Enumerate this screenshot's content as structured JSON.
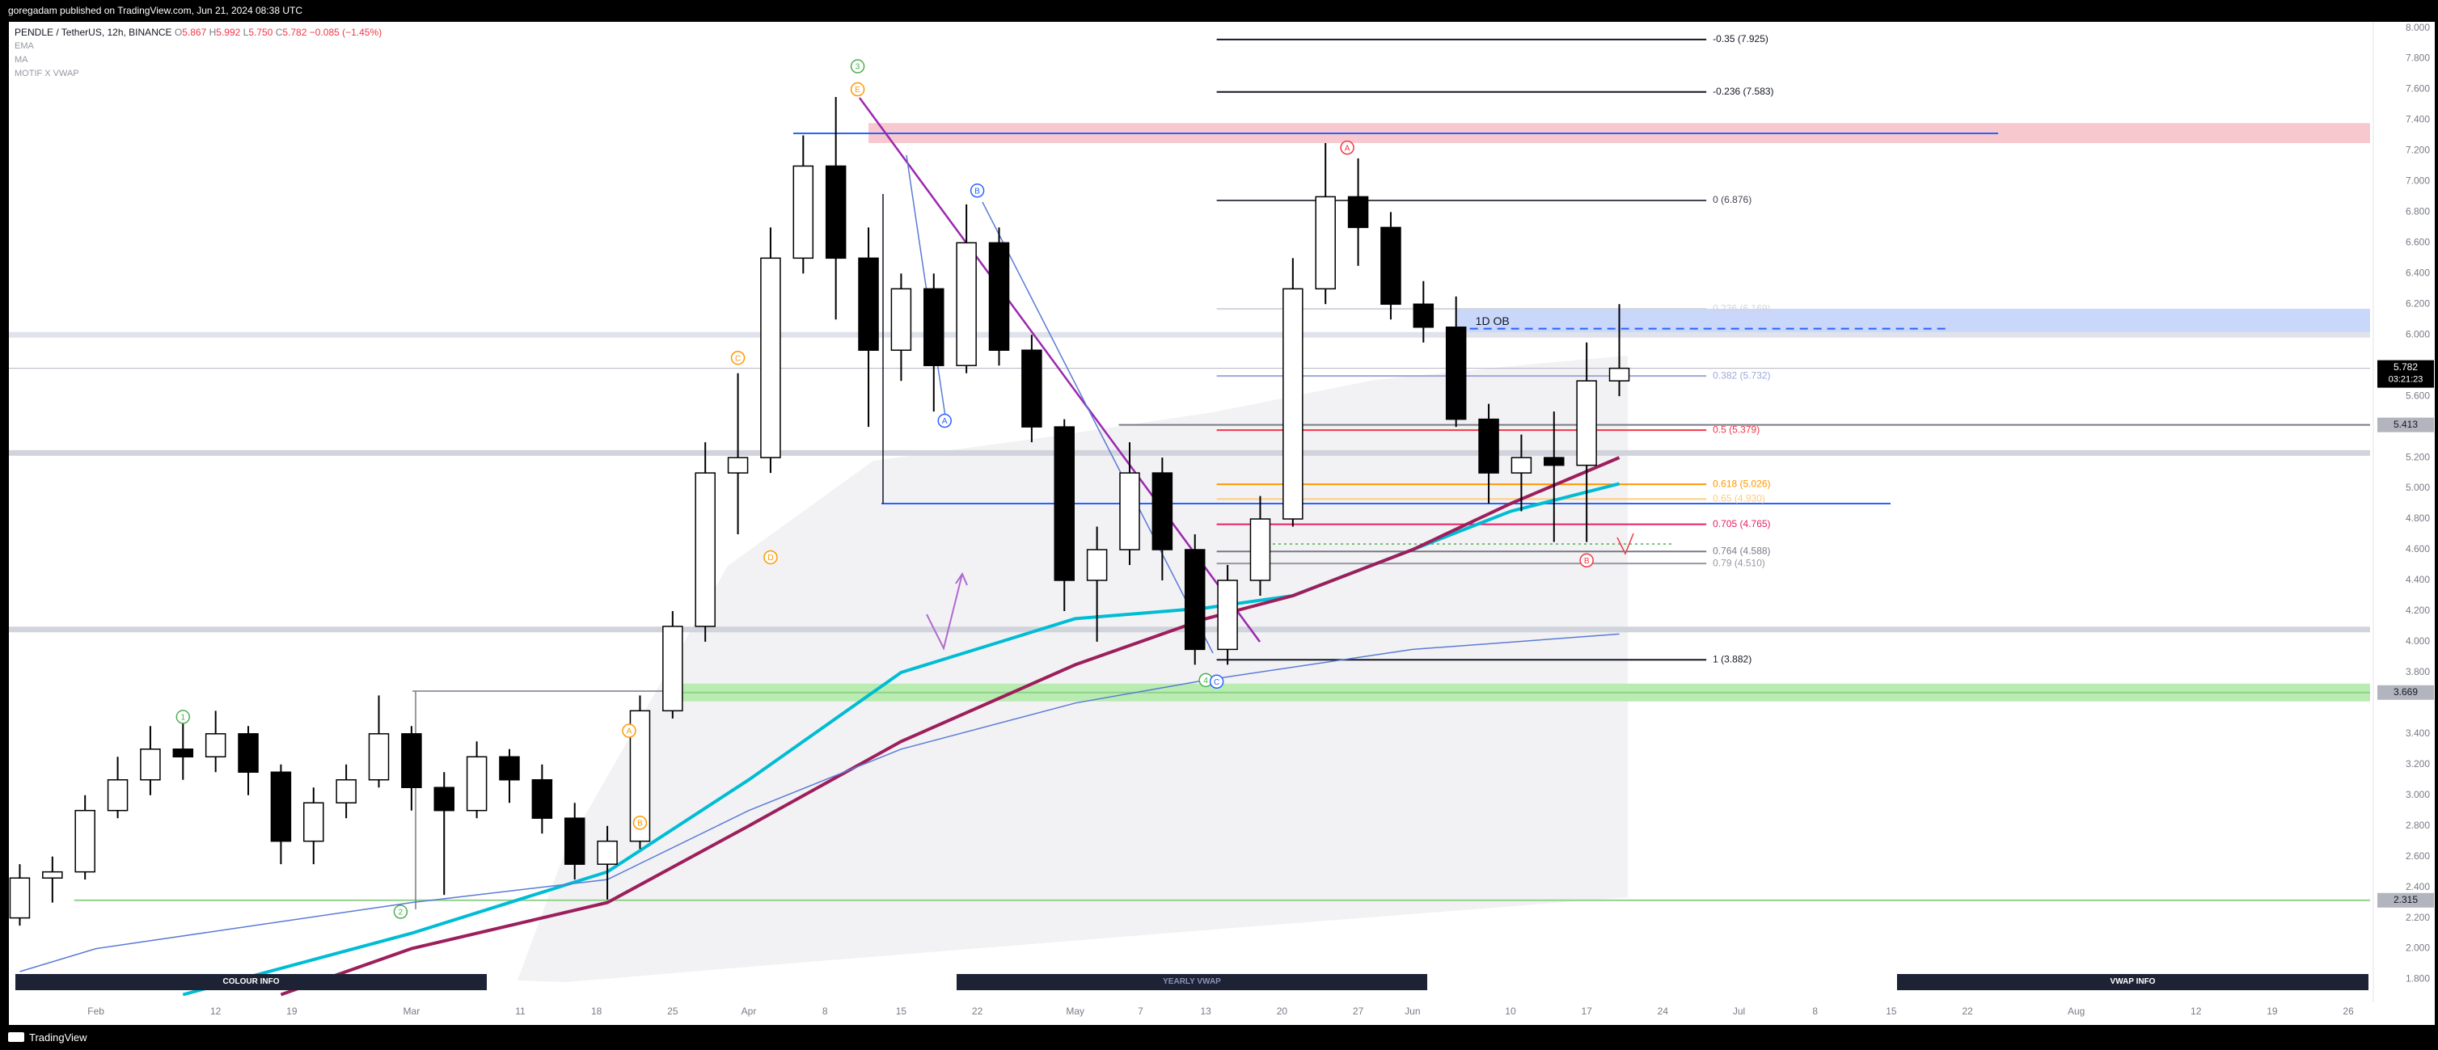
{
  "header": {
    "title": "goregadam published on TradingView.com, Jun 21, 2024 08:38 UTC"
  },
  "footer": {
    "brand": "TradingView"
  },
  "buttons": [
    "COLOUR INFO",
    "YEARLY VWAP",
    "VWAP INFO"
  ],
  "chart_data": {
    "type": "candlestick",
    "legend": {
      "symbol": "PENDLE / TetherUS, 12h, BINANCE",
      "ohlc": [
        {
          "key": "O",
          "value": "5.867"
        },
        {
          "key": "H",
          "value": "5.992"
        },
        {
          "key": "L",
          "value": "5.750"
        },
        {
          "key": "C",
          "value": "5.782"
        }
      ],
      "change": "−0.085 (−1.45%)"
    },
    "x": [
      "2024-01-25",
      "2024-01-28",
      "2024-01-31",
      "2024-02-03",
      "2024-02-06",
      "2024-02-09",
      "2024-02-12",
      "2024-02-15",
      "2024-02-18",
      "2024-02-21",
      "2024-02-24",
      "2024-02-27",
      "2024-03-01",
      "2024-03-04",
      "2024-03-07",
      "2024-03-10",
      "2024-03-13",
      "2024-03-16",
      "2024-03-19",
      "2024-03-22",
      "2024-03-25",
      "2024-03-28",
      "2024-03-31",
      "2024-04-03",
      "2024-04-06",
      "2024-04-09",
      "2024-04-12",
      "2024-04-15",
      "2024-04-18",
      "2024-04-21",
      "2024-04-24",
      "2024-04-27",
      "2024-04-30",
      "2024-05-03",
      "2024-05-06",
      "2024-05-09",
      "2024-05-12",
      "2024-05-15",
      "2024-05-18",
      "2024-05-21",
      "2024-05-24",
      "2024-05-27",
      "2024-05-30",
      "2024-06-02",
      "2024-06-05",
      "2024-06-08",
      "2024-06-11",
      "2024-06-14",
      "2024-06-17",
      "2024-06-20"
    ],
    "open": [
      2.2,
      2.46,
      2.5,
      2.9,
      3.1,
      3.3,
      3.25,
      3.4,
      3.15,
      2.7,
      2.95,
      3.1,
      3.4,
      3.05,
      2.9,
      3.25,
      3.1,
      2.85,
      2.55,
      2.7,
      3.55,
      4.1,
      5.1,
      5.2,
      6.5,
      7.1,
      6.5,
      5.9,
      6.3,
      5.8,
      6.6,
      5.9,
      5.4,
      4.4,
      4.6,
      5.1,
      4.6,
      3.95,
      4.4,
      4.8,
      6.3,
      6.9,
      6.7,
      6.2,
      6.05,
      5.45,
      5.1,
      5.2,
      5.15,
      5.7
    ],
    "high": [
      2.55,
      2.6,
      3.0,
      3.25,
      3.45,
      3.5,
      3.55,
      3.45,
      3.2,
      3.05,
      3.2,
      3.65,
      3.45,
      3.15,
      3.35,
      3.3,
      3.2,
      2.95,
      2.8,
      3.65,
      4.2,
      5.3,
      5.75,
      6.7,
      7.3,
      7.55,
      6.7,
      6.4,
      6.4,
      6.85,
      6.7,
      6.0,
      5.45,
      4.75,
      5.3,
      5.2,
      4.7,
      4.5,
      4.95,
      6.5,
      7.25,
      7.15,
      6.8,
      6.35,
      6.25,
      5.55,
      5.35,
      5.5,
      5.95,
      6.2
    ],
    "low": [
      2.15,
      2.3,
      2.45,
      2.85,
      3.0,
      3.1,
      3.15,
      3.0,
      2.55,
      2.55,
      2.85,
      3.05,
      2.9,
      2.35,
      2.85,
      2.95,
      2.75,
      2.45,
      2.32,
      2.65,
      3.5,
      4.0,
      4.7,
      5.1,
      6.4,
      6.1,
      5.4,
      5.7,
      5.5,
      5.75,
      5.8,
      5.3,
      4.2,
      4.0,
      4.5,
      4.4,
      3.85,
      3.85,
      4.3,
      4.75,
      6.2,
      6.45,
      6.1,
      5.95,
      5.4,
      4.9,
      4.85,
      4.65,
      4.65,
      5.6
    ],
    "close": [
      2.46,
      2.5,
      2.9,
      3.1,
      3.3,
      3.25,
      3.4,
      3.15,
      2.7,
      2.95,
      3.1,
      3.4,
      3.05,
      2.9,
      3.25,
      3.1,
      2.85,
      2.55,
      2.7,
      3.55,
      4.1,
      5.1,
      5.2,
      6.5,
      7.1,
      6.5,
      5.9,
      6.3,
      5.8,
      6.6,
      5.9,
      5.4,
      4.4,
      4.6,
      5.1,
      4.6,
      3.95,
      4.4,
      4.8,
      6.3,
      6.9,
      6.7,
      6.2,
      6.05,
      5.45,
      5.1,
      5.2,
      5.15,
      5.7,
      5.782
    ],
    "up_color": "#ffffff",
    "down_color": "#000000",
    "series": [
      {
        "name": "EMA",
        "color": "#00bcd4",
        "width": 4,
        "x": [
          "2024-02-09",
          "2024-03-01",
          "2024-03-19",
          "2024-04-01",
          "2024-04-15",
          "2024-05-01",
          "2024-05-13",
          "2024-05-21",
          "2024-06-01",
          "2024-06-10",
          "2024-06-20"
        ],
        "values": [
          1.7,
          2.1,
          2.5,
          3.1,
          3.8,
          4.15,
          4.22,
          4.3,
          4.6,
          4.85,
          5.03
        ]
      },
      {
        "name": "MA",
        "color": "#9c1f5c",
        "width": 4,
        "x": [
          "2024-02-18",
          "2024-03-01",
          "2024-03-19",
          "2024-04-01",
          "2024-04-15",
          "2024-05-01",
          "2024-05-13",
          "2024-05-21",
          "2024-06-01",
          "2024-06-10",
          "2024-06-20"
        ],
        "values": [
          1.7,
          2.0,
          2.3,
          2.8,
          3.35,
          3.85,
          4.15,
          4.3,
          4.6,
          4.9,
          5.2
        ]
      },
      {
        "name": "MOTIF X VWAP",
        "color": "#5b7bd5",
        "width": 1.5,
        "x": [
          "2024-01-25",
          "2024-02-01",
          "2024-03-01",
          "2024-03-19",
          "2024-04-01",
          "2024-04-15",
          "2024-05-01",
          "2024-05-13",
          "2024-06-01",
          "2024-06-20"
        ],
        "values": [
          1.85,
          2.0,
          2.3,
          2.45,
          2.9,
          3.3,
          3.6,
          3.75,
          3.95,
          4.05
        ]
      }
    ],
    "zones": [
      {
        "from": 7.25,
        "to": 7.38,
        "start": "2024-04-12",
        "color": "#f8c8cf"
      },
      {
        "label": "1D OB",
        "from": 6.0,
        "to": 6.17,
        "start": "2024-06-05",
        "color": "#c9d7fb"
      }
    ],
    "bands": [
      {
        "value": 6.0,
        "color": "#e0e3eb"
      },
      {
        "value": 5.23,
        "color": "#d1d4dc"
      },
      {
        "value": 4.08,
        "color": "#d1d4dc"
      }
    ],
    "ob_line": {
      "value": 6.04,
      "start": "2024-06-05",
      "end": "2024-07-20",
      "color": "#2962ff"
    },
    "levels": [
      {
        "value": 5.413,
        "label": "5.413",
        "start": "2024-05-05",
        "color": "#787b86",
        "tag": "#b2b5be"
      },
      {
        "value": 3.669,
        "label": "3.669",
        "start": "2024-03-25",
        "color": "#b9ecb0",
        "tag": "#b2b5be",
        "band": true
      },
      {
        "value": 2.315,
        "label": "2.315",
        "start": "2024-01-30",
        "color": "#8fd18a",
        "tag": "#b2b5be"
      }
    ],
    "last_price": {
      "value": 5.782,
      "label": "5.782",
      "countdown": "03:21:23"
    },
    "fib": {
      "start": "2024-05-14",
      "end": "2024-06-28",
      "levels": [
        {
          "label": "-0.35 (7.925)",
          "value": 7.925,
          "color": "#131722"
        },
        {
          "label": "-0.236 (7.583)",
          "value": 7.583,
          "color": "#131722"
        },
        {
          "label": "0 (6.876)",
          "value": 6.876,
          "color": "#434651"
        },
        {
          "label": "0.236 (6.169)",
          "value": 6.169,
          "color": "#d1d4dc"
        },
        {
          "label": "0.382 (5.732)",
          "value": 5.732,
          "color": "#9fa8da"
        },
        {
          "label": "0.5 (5.379)",
          "value": 5.379,
          "color": "#f23645"
        },
        {
          "label": "0.618 (5.026)",
          "value": 5.026,
          "color": "#ff9800"
        },
        {
          "label": "0.65 (4.930)",
          "value": 4.93,
          "color": "#ffcc80"
        },
        {
          "label": "0.705 (4.765)",
          "value": 4.765,
          "color": "#e91e63"
        },
        {
          "label": "0.764 (4.588)",
          "value": 4.588,
          "color": "#787b86"
        },
        {
          "label": "0.79 (4.510)",
          "value": 4.51,
          "color": "#9598a1"
        },
        {
          "label": "1 (3.882)",
          "value": 3.882,
          "color": "#131722"
        }
      ]
    },
    "wave_labels": [
      {
        "text": "1",
        "color": "#4caf50",
        "x": "2024-02-09",
        "y": 3.51
      },
      {
        "text": "2",
        "color": "#4caf50",
        "x": "2024-02-29",
        "y": 2.24
      },
      {
        "text": "3",
        "color": "#4caf50",
        "x": "2024-04-11",
        "y": 7.75
      },
      {
        "text": "4",
        "color": "#4caf50",
        "x": "2024-05-13",
        "y": 3.75
      },
      {
        "text": "A",
        "color": "#ff9800",
        "x": "2024-03-21",
        "y": 3.42
      },
      {
        "text": "B",
        "color": "#ff9800",
        "x": "2024-03-22",
        "y": 2.82
      },
      {
        "text": "C",
        "color": "#ff9800",
        "x": "2024-03-31",
        "y": 5.85
      },
      {
        "text": "D",
        "color": "#ff9800",
        "x": "2024-04-03",
        "y": 4.55
      },
      {
        "text": "E",
        "color": "#ff9800",
        "x": "2024-04-11",
        "y": 7.6
      },
      {
        "text": "A",
        "color": "#2962ff",
        "x": "2024-04-19",
        "y": 5.44
      },
      {
        "text": "B",
        "color": "#2962ff",
        "x": "2024-04-22",
        "y": 6.94
      },
      {
        "text": "C",
        "color": "#2962ff",
        "x": "2024-05-14",
        "y": 3.74
      },
      {
        "text": "A",
        "color": "#f23645",
        "x": "2024-05-26",
        "y": 7.22
      },
      {
        "text": "B",
        "color": "#f23645",
        "x": "2024-06-17",
        "y": 4.53
      }
    ],
    "xlim": [
      "2024-01-24",
      "2024-08-28"
    ],
    "xticks": [
      {
        "value": "2024-02-01",
        "label": "Feb"
      },
      {
        "value": "2024-02-12",
        "label": "12"
      },
      {
        "value": "2024-02-19",
        "label": "19"
      },
      {
        "value": "2024-03-01",
        "label": "Mar"
      },
      {
        "value": "2024-03-11",
        "label": "11"
      },
      {
        "value": "2024-03-18",
        "label": "18"
      },
      {
        "value": "2024-03-25",
        "label": "25"
      },
      {
        "value": "2024-04-01",
        "label": "Apr"
      },
      {
        "value": "2024-04-08",
        "label": "8"
      },
      {
        "value": "2024-04-15",
        "label": "15"
      },
      {
        "value": "2024-04-22",
        "label": "22"
      },
      {
        "value": "2024-05-01",
        "label": "May"
      },
      {
        "value": "2024-05-07",
        "label": "7"
      },
      {
        "value": "2024-05-13",
        "label": "13"
      },
      {
        "value": "2024-05-20",
        "label": "20"
      },
      {
        "value": "2024-05-27",
        "label": "27"
      },
      {
        "value": "2024-06-01",
        "label": "Jun"
      },
      {
        "value": "2024-06-10",
        "label": "10"
      },
      {
        "value": "2024-06-17",
        "label": "17"
      },
      {
        "value": "2024-06-24",
        "label": "24"
      },
      {
        "value": "2024-07-01",
        "label": "Jul"
      },
      {
        "value": "2024-07-08",
        "label": "8"
      },
      {
        "value": "2024-07-15",
        "label": "15"
      },
      {
        "value": "2024-07-22",
        "label": "22"
      },
      {
        "value": "2024-08-01",
        "label": "Aug"
      },
      {
        "value": "2024-08-12",
        "label": "12"
      },
      {
        "value": "2024-08-19",
        "label": "19"
      },
      {
        "value": "2024-08-26",
        "label": "26"
      }
    ],
    "ylim": [
      1.65,
      8.04
    ],
    "yticks": [
      {
        "value": 8,
        "label": "8.000"
      },
      {
        "value": 7.8,
        "label": "7.800"
      },
      {
        "value": 7.6,
        "label": "7.600"
      },
      {
        "value": 7.4,
        "label": "7.400"
      },
      {
        "value": 7.2,
        "label": "7.200"
      },
      {
        "value": 7,
        "label": "7.000"
      },
      {
        "value": 6.8,
        "label": "6.800"
      },
      {
        "value": 6.6,
        "label": "6.600"
      },
      {
        "value": 6.4,
        "label": "6.400"
      },
      {
        "value": 6.2,
        "label": "6.200"
      },
      {
        "value": 6,
        "label": "6.000"
      },
      {
        "value": 5.6,
        "label": "5.600"
      },
      {
        "value": 5.2,
        "label": "5.200"
      },
      {
        "value": 5,
        "label": "5.000"
      },
      {
        "value": 4.8,
        "label": "4.800"
      },
      {
        "value": 4.6,
        "label": "4.600"
      },
      {
        "value": 4.4,
        "label": "4.400"
      },
      {
        "value": 4.2,
        "label": "4.200"
      },
      {
        "value": 4,
        "label": "4.000"
      },
      {
        "value": 3.8,
        "label": "3.800"
      },
      {
        "value": 3.4,
        "label": "3.400"
      },
      {
        "value": 3.2,
        "label": "3.200"
      },
      {
        "value": 3,
        "label": "3.000"
      },
      {
        "value": 2.8,
        "label": "2.800"
      },
      {
        "value": 2.6,
        "label": "2.600"
      },
      {
        "value": 2.4,
        "label": "2.400"
      },
      {
        "value": 2.2,
        "label": "2.200"
      },
      {
        "value": 2,
        "label": "2.000"
      },
      {
        "value": 1.8,
        "label": "1.800"
      }
    ],
    "grid": false
  }
}
